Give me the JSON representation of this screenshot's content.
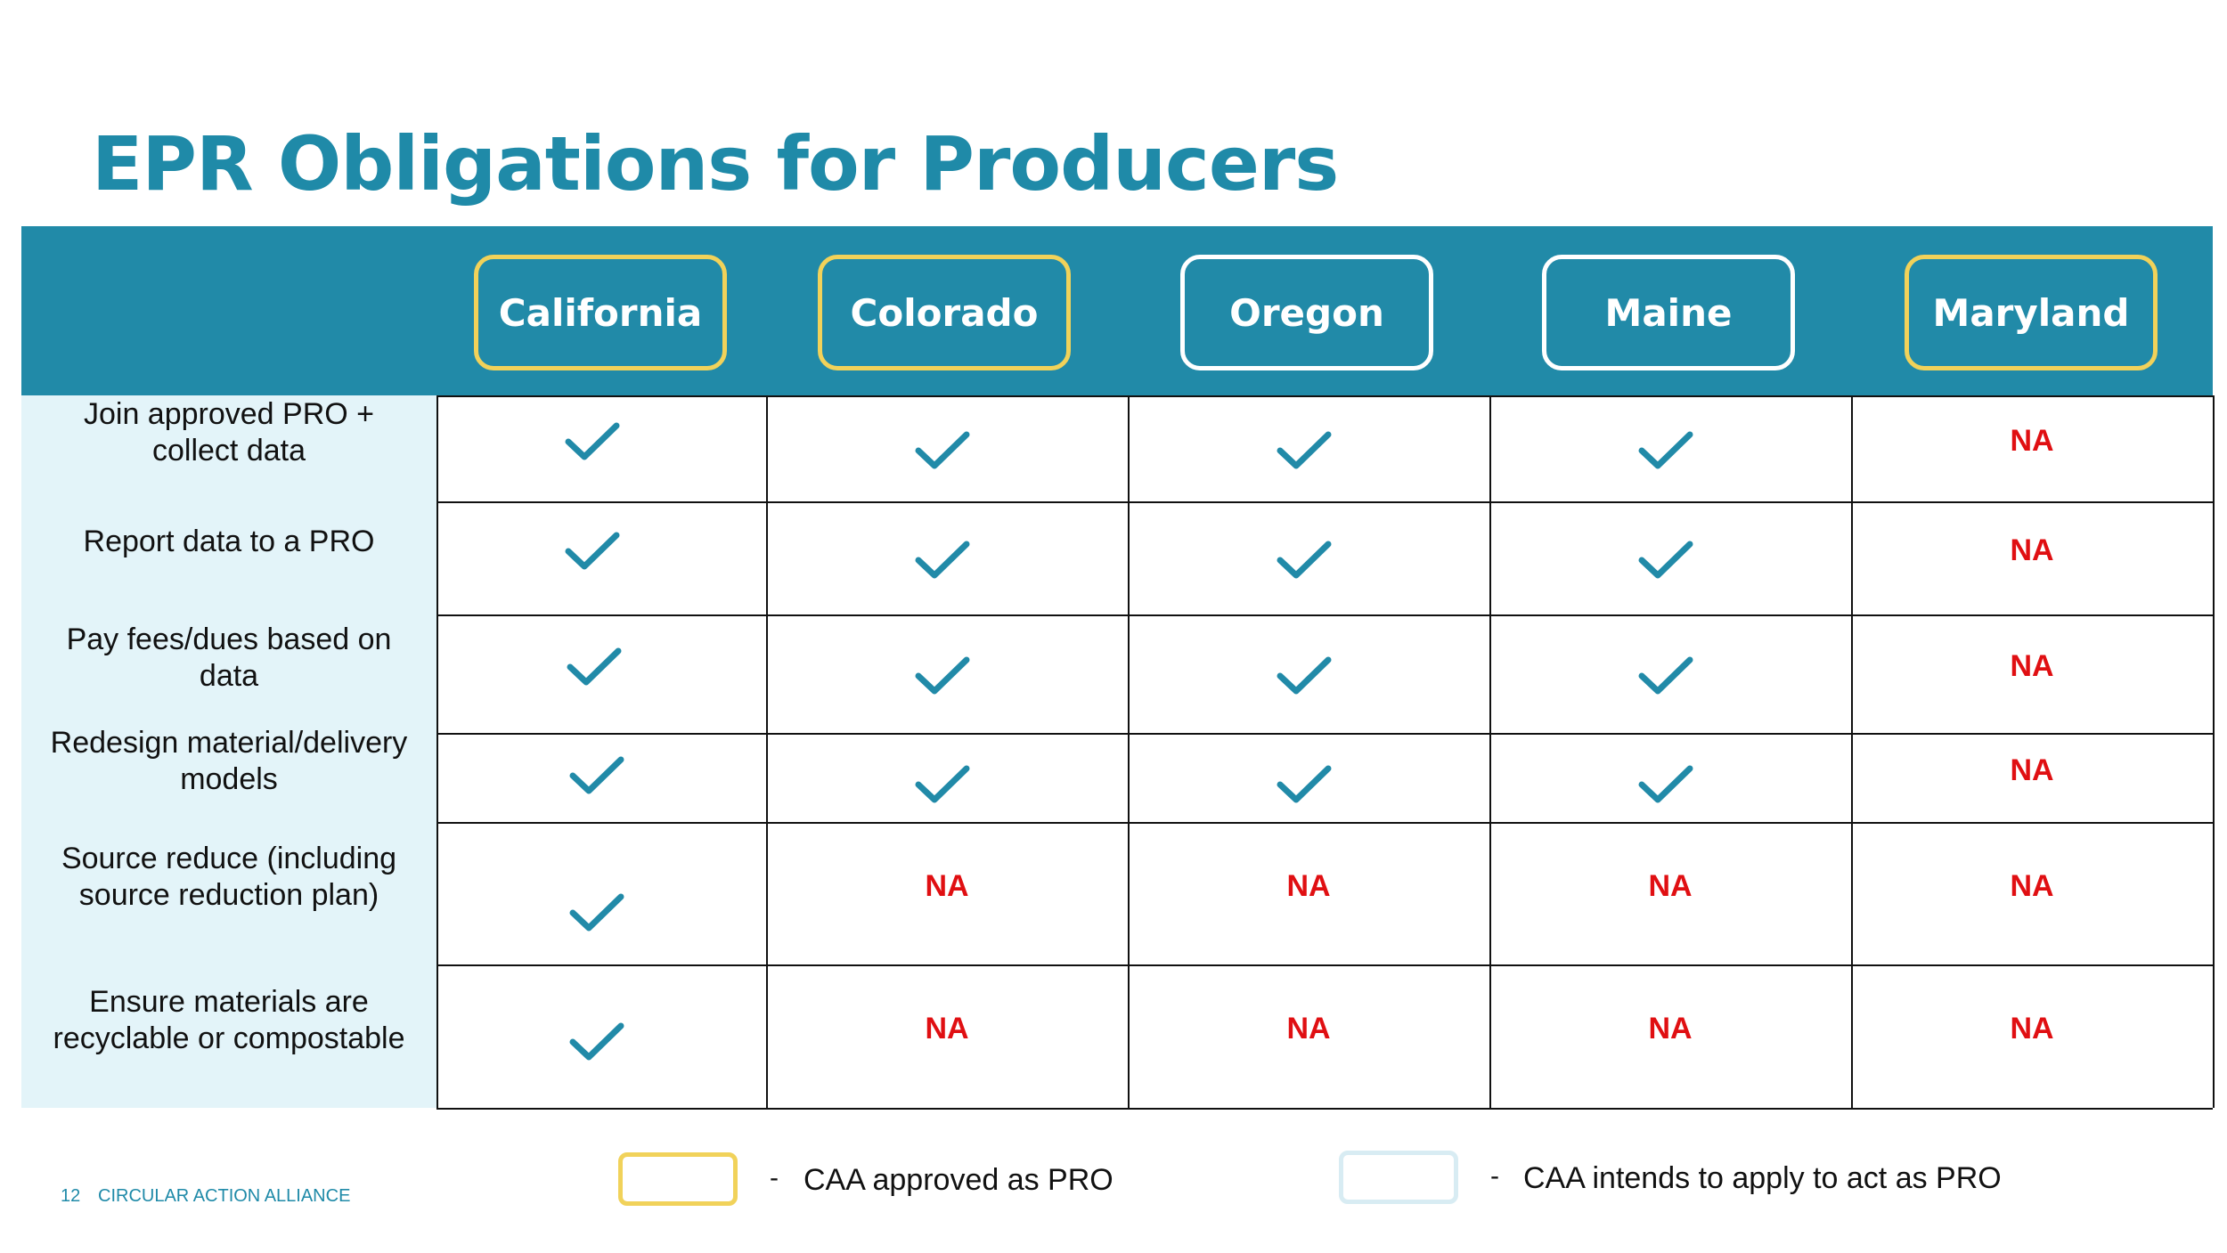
{
  "title": "EPR Obligations for Producers",
  "colors": {
    "brand_teal": "#218aa8",
    "approved_border": "#f1d25a",
    "intends_border": "#ffffff",
    "label_bg": "#e3f4f9",
    "na_red": "#e00f12",
    "check": "#218aa8"
  },
  "states": [
    {
      "name": "California",
      "status": "approved"
    },
    {
      "name": "Colorado",
      "status": "approved"
    },
    {
      "name": "Oregon",
      "status": "intends"
    },
    {
      "name": "Maine",
      "status": "intends"
    },
    {
      "name": "Maryland",
      "status": "approved"
    }
  ],
  "rows": [
    {
      "label": "Join approved PRO + collect data",
      "values": [
        "check",
        "check",
        "check",
        "check",
        "NA"
      ]
    },
    {
      "label": "Report data to a PRO",
      "values": [
        "check",
        "check",
        "check",
        "check",
        "NA"
      ]
    },
    {
      "label": "Pay fees/dues based on data",
      "values": [
        "check",
        "check",
        "check",
        "check",
        "NA"
      ]
    },
    {
      "label": "Redesign material/delivery models",
      "values": [
        "check",
        "check",
        "check",
        "check",
        "NA"
      ]
    },
    {
      "label": "Source reduce (including source reduction plan)",
      "values": [
        "check",
        "NA",
        "NA",
        "NA",
        "NA"
      ]
    },
    {
      "label": "Ensure materials are recyclable or compostable",
      "values": [
        "check",
        "NA",
        "NA",
        "NA",
        "NA"
      ]
    }
  ],
  "check_icon": "checkmark-icon",
  "legend": {
    "dash": "-",
    "approved_label": "CAA approved as PRO",
    "intends_label": "CAA intends to apply to act as PRO"
  },
  "footer": {
    "page_number": "12",
    "organization": "CIRCULAR ACTION ALLIANCE"
  }
}
